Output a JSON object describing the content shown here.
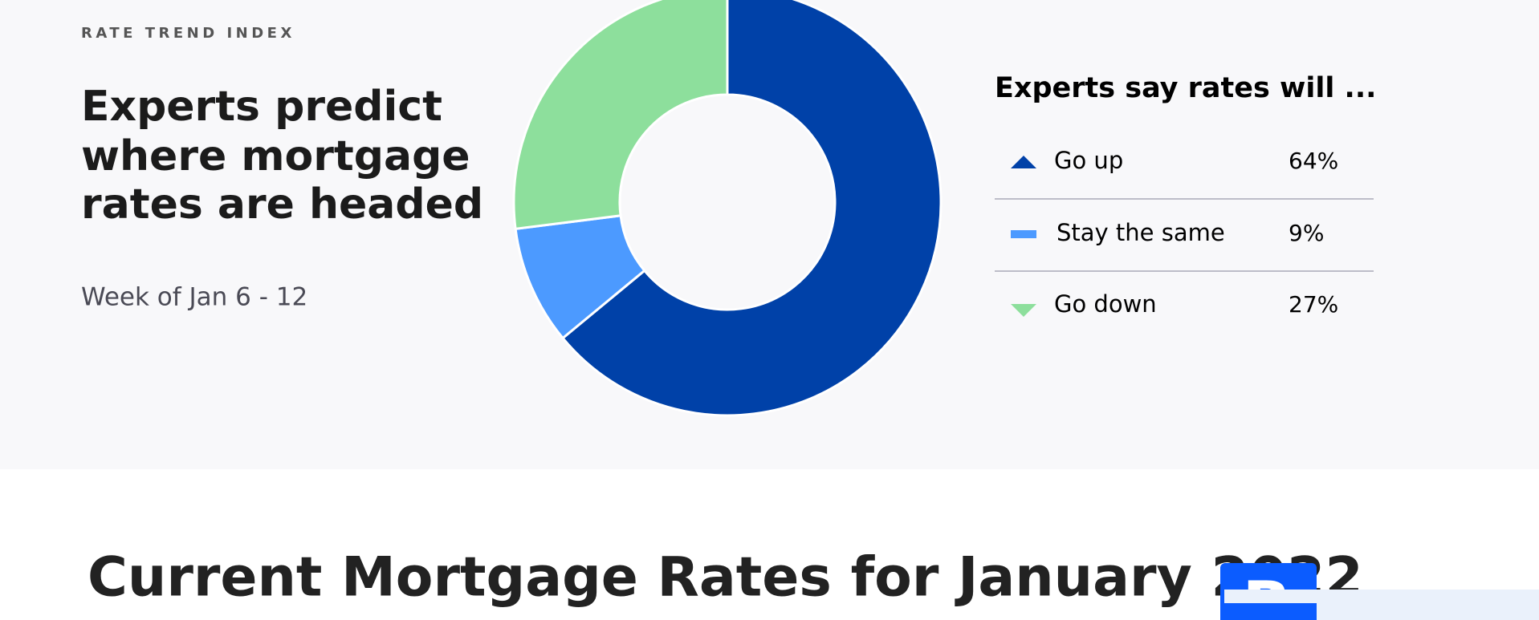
{
  "kicker": "RATE TREND INDEX",
  "heading": [
    "Experts predict",
    "where mortgage",
    "rates are headed"
  ],
  "week": "Week of Jan 6 - 12",
  "page_title": "Current Mortgage Rates for January 2022",
  "logo": "B",
  "chart_data": {
    "type": "donut",
    "title": "Experts say rates will ...",
    "categories": [
      "Go up",
      "Stay the same",
      "Go down"
    ],
    "values": [
      64,
      9,
      27
    ],
    "value_labels": [
      "64%",
      "9%",
      "27%"
    ],
    "colors": [
      "#0041a8",
      "#4c9aff",
      "#8ddf9c"
    ]
  }
}
